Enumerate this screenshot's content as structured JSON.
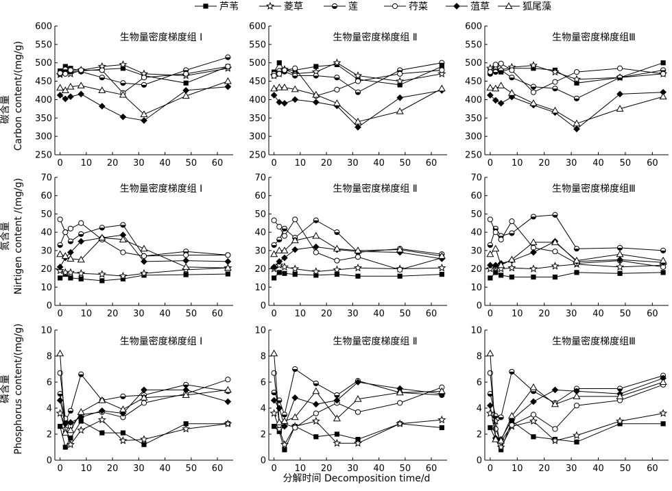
{
  "legend": {
    "items": [
      "芦苇",
      "菱草",
      "莲",
      "荇菜",
      "菹草",
      "狐尾藻"
    ]
  },
  "ylabels": {
    "carbon": [
      "碳含量",
      "Carbon content/(mg/g)"
    ],
    "nitrogen": [
      "氮含量",
      "Nirtigen content /(mg/g)"
    ],
    "phosphorus": [
      "磷含量",
      "Phosphorus content/(mg/g)"
    ]
  },
  "xlabel": "分解时间 Decomposition time/d",
  "chart_data": {
    "type": "line",
    "x": [
      0,
      2,
      4,
      8,
      16,
      24,
      32,
      48,
      64
    ],
    "x_ticks": [
      0,
      10,
      20,
      30,
      40,
      50,
      60
    ],
    "series_names": [
      "芦苇",
      "菱草",
      "莲",
      "荇菜",
      "菹草",
      "狐尾藻"
    ],
    "markers": [
      "square-filled",
      "star-open",
      "circle-half",
      "circle-open",
      "diamond-filled",
      "triangle-open"
    ],
    "rows": [
      {
        "key": "carbon",
        "ylim": [
          250,
          600
        ],
        "yticks": [
          250,
          300,
          350,
          400,
          450,
          500,
          550,
          600
        ],
        "panels": [
          {
            "title": "生物量密度梯度组 Ⅰ",
            "series": [
              [
                478,
                490,
                485,
                478,
                482,
                485,
                465,
                445,
                490
              ],
              [
                468,
                475,
                470,
                480,
                490,
                495,
                470,
                465,
                485
              ],
              [
                470,
                482,
                476,
                476,
                460,
                445,
                440,
                480,
                515
              ],
              [
                472,
                470,
                480,
                480,
                480,
                418,
                460,
                470,
                490
              ],
              [
                412,
                402,
                408,
                415,
                382,
                353,
                343,
                425,
                435
              ],
              [
                432,
                425,
                435,
                438,
                425,
                413,
                360,
                410,
                450
              ]
            ]
          },
          {
            "title": "生物量密度梯度组 Ⅱ",
            "series": [
              [
                475,
                500,
                480,
                480,
                490,
                495,
                455,
                440,
                490
              ],
              [
                465,
                470,
                482,
                470,
                475,
                500,
                465,
                450,
                470
              ],
              [
                470,
                478,
                476,
                465,
                465,
                460,
                420,
                480,
                500
              ],
              [
                465,
                470,
                480,
                485,
                410,
                427,
                450,
                470,
                480
              ],
              [
                412,
                393,
                390,
                400,
                393,
                383,
                325,
                405,
                425
              ],
              [
                430,
                433,
                433,
                428,
                413,
                390,
                340,
                368,
                430
              ]
            ]
          },
          {
            "title": "生物量密度梯度组Ⅲ",
            "series": [
              [
                478,
                478,
                475,
                485,
                485,
                480,
                445,
                460,
                500
              ],
              [
                485,
                488,
                480,
                488,
                493,
                475,
                455,
                460,
                470
              ],
              [
                470,
                475,
                480,
                460,
                435,
                430,
                403,
                460,
                480
              ],
              [
                475,
                495,
                498,
                480,
                420,
                448,
                475,
                485,
                470
              ],
              [
                412,
                398,
                390,
                407,
                385,
                365,
                320,
                415,
                420
              ],
              [
                432,
                430,
                438,
                418,
                390,
                370,
                335,
                375,
                408
              ]
            ]
          }
        ]
      },
      {
        "key": "nitrogen",
        "ylim": [
          0,
          70
        ],
        "yticks": [
          0,
          10,
          20,
          30,
          40,
          50,
          60,
          70
        ],
        "panels": [
          {
            "title": "生物量密度梯度组 Ⅰ",
            "series": [
              [
                15,
                17,
                15,
                14.5,
                13.5,
                14.5,
                16.5,
                16.8,
                17.2
              ],
              [
                19,
                18,
                18,
                17.5,
                17,
                16,
                17.5,
                19.5,
                20.5
              ],
              [
                33,
                40,
                35,
                39,
                42.5,
                44,
                27,
                29.5,
                27.5
              ],
              [
                47,
                40,
                42,
                45,
                36,
                29,
                27,
                27.5,
                27.5
              ],
              [
                21,
                26,
                29,
                35,
                37,
                38.5,
                24,
                24.5,
                24
              ],
              [
                28,
                27,
                25.5,
                25,
                37,
                36,
                31,
                21,
                20.5
              ]
            ]
          },
          {
            "title": "生物量密度梯度组 Ⅱ",
            "series": [
              [
                15,
                18,
                17.5,
                17,
                16.5,
                17,
                16,
                16,
                17
              ],
              [
                20,
                22,
                21,
                20,
                18.5,
                19.5,
                20.5,
                20,
                20.5
              ],
              [
                33,
                36,
                42,
                37,
                46.5,
                40,
                29,
                31,
                28
              ],
              [
                46.5,
                43,
                38,
                47,
                29,
                24.5,
                26.5,
                19.5,
                26
              ],
              [
                21,
                24,
                26,
                30.5,
                32,
                30.5,
                29.5,
                29,
                25.5
              ],
              [
                28,
                30,
                30,
                35.5,
                38,
                31,
                30,
                30.5,
                27
              ]
            ]
          },
          {
            "title": "生物量密度梯度组Ⅲ",
            "series": [
              [
                15,
                18,
                16.5,
                15.5,
                15.5,
                15.5,
                18,
                17.5,
                18
              ],
              [
                20,
                21,
                20,
                20.5,
                20,
                21.5,
                22.5,
                21,
                22
              ],
              [
                33,
                42,
                38,
                39.5,
                48.5,
                49.5,
                31,
                31.5,
                30
              ],
              [
                47,
                40,
                36,
                46,
                31.5,
                29.5,
                23,
                24.5,
                21
              ],
              [
                22,
                22,
                23,
                24.5,
                29,
                35,
                24,
                25,
                23.5
              ],
              [
                28,
                31,
                22,
                25,
                34.5,
                34.5,
                24.5,
                28,
                24.5
              ]
            ]
          }
        ]
      },
      {
        "key": "phosphorus",
        "ylim": [
          0,
          10
        ],
        "yticks": [
          0,
          2,
          4,
          6,
          8,
          10
        ],
        "panels": [
          {
            "title": "生物量密度梯度组 Ⅰ",
            "series": [
              [
                2.6,
                1.0,
                1.7,
                3.0,
                2.1,
                2.1,
                1.2,
                2.8,
                2.8
              ],
              [
                3.6,
                2.4,
                1.2,
                2.3,
                3.1,
                1.5,
                1.6,
                2.4,
                2.8
              ],
              [
                5.1,
                3.0,
                3.8,
                6.6,
                4.6,
                4.9,
                5.0,
                5.8,
                5.3
              ],
              [
                6.7,
                3.2,
                2.6,
                3.5,
                3.7,
                3.3,
                4.4,
                5.1,
                6.2
              ],
              [
                4.6,
                2.8,
                2.9,
                3.3,
                3.8,
                3.6,
                5.4,
                5.4,
                4.5
              ],
              [
                8.2,
                2.1,
                2.3,
                3.7,
                4.6,
                3.9,
                4.8,
                5.0,
                5.4
              ]
            ]
          },
          {
            "title": "生物量密度梯度组 Ⅱ",
            "series": [
              [
                2.6,
                2.2,
                0.8,
                2.6,
                1.8,
                2.0,
                1.6,
                2.8,
                2.5
              ],
              [
                3.6,
                2.4,
                1.2,
                2.6,
                3.0,
                1.3,
                1.3,
                2.8,
                3.1
              ],
              [
                5.2,
                4.6,
                3.5,
                7.0,
                5.9,
                5.0,
                6.1,
                5.2,
                5.0
              ],
              [
                6.7,
                2.7,
                2.8,
                2.5,
                3.6,
                4.4,
                3.7,
                4.4,
                5.6
              ],
              [
                4.6,
                4.0,
                2.6,
                4.8,
                4.3,
                4.6,
                6.0,
                5.5,
                5.1
              ],
              [
                8.2,
                2.9,
                3.0,
                3.3,
                5.3,
                3.2,
                4.7,
                5.2,
                5.3
              ]
            ]
          },
          {
            "title": "生物量密度梯度组Ⅲ",
            "series": [
              [
                2.5,
                1.6,
                0.8,
                3.0,
                1.8,
                1.6,
                1.4,
                2.8,
                2.8
              ],
              [
                3.6,
                3.0,
                1.0,
                2.6,
                3.0,
                1.5,
                1.9,
                3.0,
                3.6
              ],
              [
                5.1,
                3.4,
                3.3,
                6.8,
                5.3,
                4.4,
                5.5,
                5.5,
                6.5
              ],
              [
                6.7,
                2.4,
                1.4,
                2.7,
                3.5,
                2.4,
                4.2,
                4.6,
                5.8
              ],
              [
                4.2,
                1.7,
                1.6,
                3.1,
                4.5,
                5.4,
                5.3,
                5.1,
                6.3
              ],
              [
                8.2,
                1.6,
                1.5,
                3.4,
                5.6,
                4.3,
                4.9,
                4.9,
                6.0
              ]
            ]
          }
        ]
      }
    ]
  }
}
